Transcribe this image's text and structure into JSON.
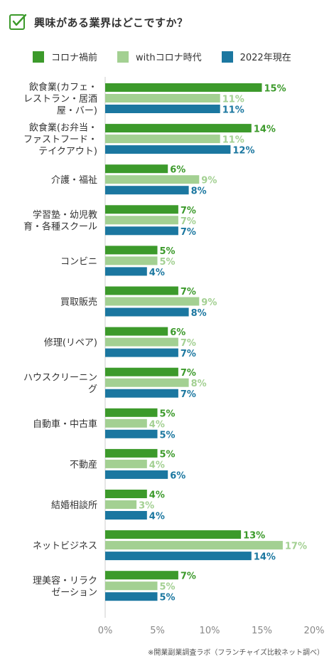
{
  "title": "興味がある業界はどこですか？",
  "icon": "checkbox-checked-icon",
  "colors": {
    "corona_before": "#3c9a2b",
    "with_corona": "#a3d092",
    "y2022": "#1b77a0",
    "accent": "#3c9a2b"
  },
  "footnote": "※開業副業調査ラボ（フランチャイズ比較ネット調べ）",
  "chart_data": {
    "type": "bar",
    "orientation": "horizontal",
    "title": "興味がある業界はどこですか？",
    "categories": [
      [
        "飲食業(カフェ・",
        "レストラン・居酒",
        "屋・バー)"
      ],
      [
        "飲食業(お弁当・",
        "ファストフード・",
        "テイクアウト)"
      ],
      [
        "介護・福祉"
      ],
      [
        "学習塾・幼児教",
        "育・各種スクール"
      ],
      [
        "コンビニ"
      ],
      [
        "買取販売"
      ],
      [
        "修理(リペア)"
      ],
      [
        "ハウスクリーニン",
        "グ"
      ],
      [
        "自動車・中古車"
      ],
      [
        "不動産"
      ],
      [
        "結婚相談所"
      ],
      [
        "ネットビジネス"
      ],
      [
        "理美容・リラク",
        "ゼーション"
      ]
    ],
    "series": [
      {
        "name": "コロナ禍前",
        "color": "#3c9a2b",
        "values": [
          15,
          14,
          6,
          7,
          5,
          7,
          6,
          7,
          5,
          5,
          4,
          13,
          7
        ]
      },
      {
        "name": "withコロナ時代",
        "color": "#a3d092",
        "values": [
          11,
          11,
          9,
          7,
          5,
          9,
          7,
          8,
          4,
          4,
          3,
          17,
          5
        ]
      },
      {
        "name": "2022年現在",
        "color": "#1b77a0",
        "values": [
          11,
          12,
          8,
          7,
          4,
          8,
          7,
          7,
          5,
          6,
          4,
          14,
          5
        ]
      }
    ],
    "value_suffix": "%",
    "xlim": [
      0,
      20
    ],
    "xticks": [
      "0%",
      "5%",
      "10%",
      "15%",
      "20%"
    ],
    "grid": false,
    "legend_position": "top"
  }
}
